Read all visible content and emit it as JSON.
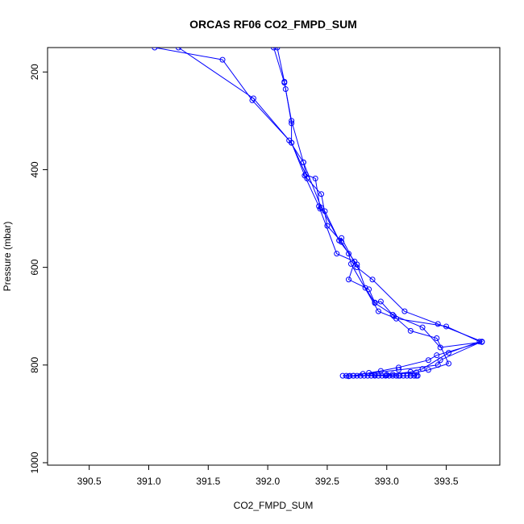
{
  "chart_data": {
    "type": "line",
    "title": "ORCAS RF06 CO2_FMPD_SUM",
    "xlabel": "CO2_FMPD_SUM",
    "ylabel": "Pressure (mbar)",
    "xlim": [
      390.15,
      393.95
    ],
    "ylim": [
      1005,
      150
    ],
    "y_reversed": true,
    "x_ticks": [
      390.5,
      391.0,
      391.5,
      392.0,
      392.5,
      393.0,
      393.5
    ],
    "x_tick_labels": [
      "390.5",
      "391.0",
      "391.5",
      "392.0",
      "392.5",
      "393.0",
      "393.5"
    ],
    "y_ticks": [
      200,
      400,
      600,
      800,
      1000
    ],
    "y_tick_labels": [
      "200",
      "400",
      "600",
      "800",
      "1000"
    ],
    "grid": false,
    "legend": "none",
    "series": [
      {
        "color": "#0000ff",
        "marker": "open-circle",
        "x": [
          391.05,
          391.62,
          391.87,
          392.2,
          392.32,
          392.4,
          392.44,
          392.48,
          392.6,
          392.62,
          392.75,
          392.88,
          393.15,
          393.43,
          393.8,
          393.45,
          393.43,
          393.1,
          392.8,
          392.72
        ],
        "y": [
          150,
          175,
          258,
          345,
          410,
          418,
          480,
          485,
          545,
          540,
          600,
          625,
          690,
          716,
          752,
          790,
          800,
          810,
          818,
          822
        ]
      },
      {
        "color": "#0000ff",
        "marker": "open-circle",
        "x": [
          391.25,
          391.88,
          392.18,
          392.3,
          392.33,
          392.45,
          392.5,
          392.62,
          392.68,
          392.7,
          392.93,
          393.08,
          393.5,
          393.78,
          393.52,
          393.3,
          393.2,
          393.0,
          392.68
        ],
        "y": [
          150,
          254,
          340,
          385,
          418,
          450,
          515,
          548,
          572,
          593,
          690,
          705,
          721,
          752,
          775,
          808,
          814,
          820,
          823
        ]
      },
      {
        "color": "#0000ff",
        "marker": "open-circle",
        "x": [
          392.08,
          392.14,
          392.15,
          392.2,
          392.2,
          392.31,
          392.43,
          392.58,
          392.73,
          392.68,
          392.85,
          392.9,
          392.95,
          393.06,
          393.2,
          393.42,
          393.52,
          393.35,
          393.25,
          393.05
        ],
        "y": [
          150,
          220,
          235,
          305,
          345,
          412,
          475,
          572,
          588,
          625,
          645,
          672,
          670,
          700,
          730,
          745,
          797,
          810,
          815,
          819
        ]
      },
      {
        "color": "#0000ff",
        "marker": "open-circle",
        "x": [
          392.05,
          392.14,
          392.2,
          392.3,
          392.45,
          392.6,
          392.75,
          392.82,
          392.9,
          393.05,
          393.3,
          393.45,
          393.8,
          393.42,
          393.35,
          393.1,
          392.95,
          392.85,
          392.9,
          393.0,
          393.1,
          393.2,
          393.25
        ],
        "y": [
          150,
          222,
          300,
          385,
          478,
          545,
          594,
          642,
          673,
          697,
          723,
          764,
          753,
          780,
          790,
          805,
          812,
          816,
          820,
          821,
          822,
          822,
          822
        ]
      }
    ],
    "cluster": {
      "color": "#0000ff",
      "marker": "open-circle",
      "y": 822,
      "x": [
        392.63,
        392.66,
        392.69,
        392.72,
        392.75,
        392.78,
        392.81,
        392.84,
        392.87,
        392.9,
        392.93,
        392.96,
        392.99,
        393.02,
        393.05,
        393.08,
        393.11,
        393.14,
        393.17,
        393.2,
        393.23,
        393.26
      ]
    }
  }
}
